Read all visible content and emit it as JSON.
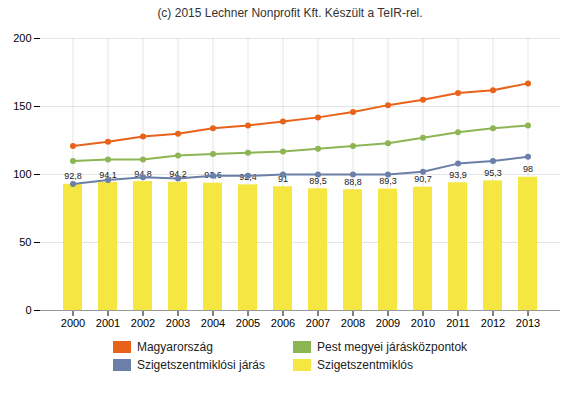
{
  "chart_data": {
    "type": "bar",
    "title": "(c) 2015 Lechner Nonprofit Kft. Készült a TeIR-rel.",
    "categories": [
      "2000",
      "2001",
      "2002",
      "2003",
      "2004",
      "2005",
      "2006",
      "2007",
      "2008",
      "2009",
      "2010",
      "2011",
      "2012",
      "2013"
    ],
    "series": [
      {
        "name": "Magyarország",
        "type": "line",
        "marker": "circle",
        "color": "#e8621a",
        "values": [
          121,
          124,
          128,
          130,
          134,
          136,
          139,
          142,
          146,
          151,
          155,
          160,
          162,
          167
        ]
      },
      {
        "name": "Szigetszentmiklósi járás",
        "type": "line",
        "marker": "circle",
        "color": "#6b7fa8",
        "values": [
          93,
          96,
          98,
          97,
          99,
          99,
          100,
          100,
          100,
          100,
          102,
          108,
          110,
          113
        ]
      },
      {
        "name": "Pest megyei járásközpontok",
        "type": "line",
        "marker": "circle",
        "color": "#8db554",
        "values": [
          110,
          111,
          111,
          114,
          115,
          116,
          117,
          119,
          121,
          123,
          127,
          131,
          134,
          136
        ]
      },
      {
        "name": "Szigetszentmiklós",
        "type": "bar",
        "color": "#f5e642",
        "values": [
          92.8,
          94.1,
          94.8,
          94.2,
          93.6,
          92.4,
          91.0,
          89.5,
          88.8,
          89.3,
          90.7,
          93.9,
          95.3,
          98.0
        ],
        "value_labels": [
          "92,8",
          "94,1",
          "94,8",
          "94,2",
          "93,6",
          "92,4",
          "91",
          "89,5",
          "88,8",
          "89,3",
          "90,7",
          "93,9",
          "95,3",
          "98"
        ]
      }
    ],
    "ylim": [
      0,
      200
    ],
    "yticks": [
      0,
      50,
      100,
      150,
      200
    ],
    "grid": true,
    "data_labels": true
  }
}
